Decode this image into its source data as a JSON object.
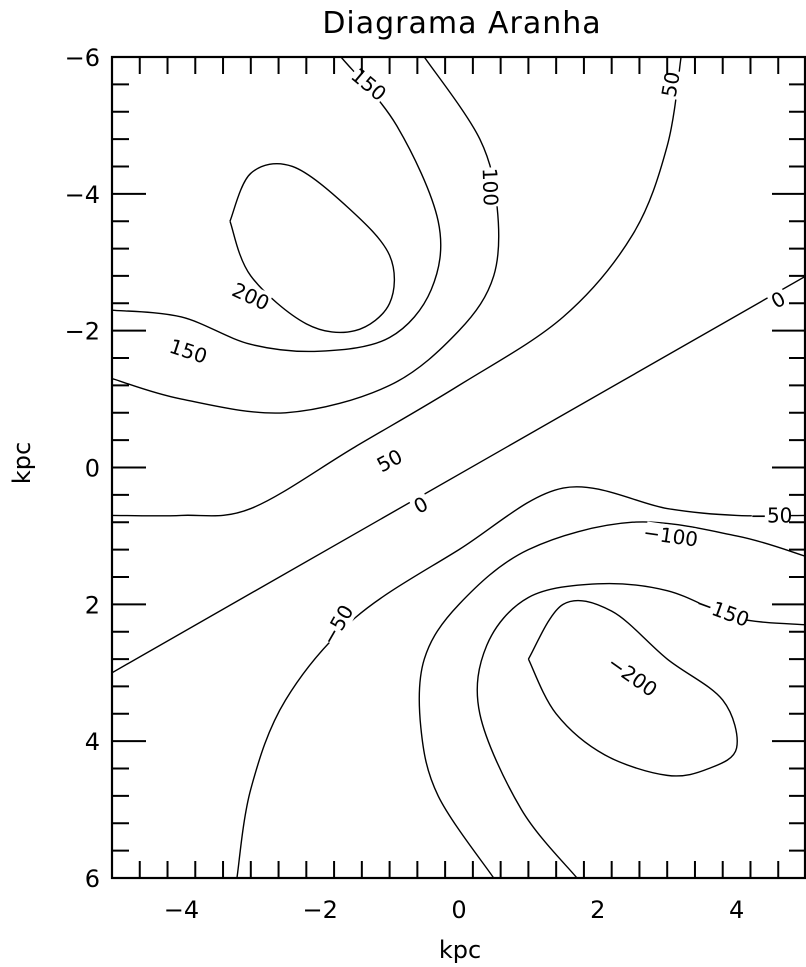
{
  "chart_data": {
    "type": "contour",
    "title": "Diagrama Aranha",
    "xlabel": "kpc",
    "ylabel": "kpc",
    "xlim": [
      -5,
      5
    ],
    "ylim": [
      -6,
      6
    ],
    "y_axis_inverted": true,
    "grid": false,
    "x_ticks": [
      -4,
      -2,
      0,
      2,
      4
    ],
    "y_ticks": [
      -6,
      -4,
      -2,
      0,
      2,
      4,
      6
    ],
    "x_tick_labels": [
      "−4",
      "−2",
      "0",
      "2",
      "4"
    ],
    "y_tick_labels": [
      "−6",
      "−4",
      "−2",
      "0",
      "2",
      "4",
      "6"
    ],
    "contours": [
      {
        "level": 200,
        "label": "200",
        "points": [
          [
            -3.3,
            -3.6
          ],
          [
            -3.0,
            -4.3
          ],
          [
            -2.4,
            -4.4
          ],
          [
            -1.6,
            -3.8
          ],
          [
            -1.0,
            -3.1
          ],
          [
            -1.0,
            -2.4
          ],
          [
            -1.5,
            -2.0
          ],
          [
            -2.2,
            -2.1
          ],
          [
            -3.0,
            -2.8
          ],
          [
            -3.3,
            -3.6
          ]
        ]
      },
      {
        "level": 150,
        "label": "150",
        "points": [
          [
            -1.7,
            -6.0
          ],
          [
            -0.9,
            -5.0
          ],
          [
            -0.3,
            -3.6
          ],
          [
            -0.4,
            -2.6
          ],
          [
            -1.0,
            -1.9
          ],
          [
            -2.0,
            -1.7
          ],
          [
            -3.0,
            -1.8
          ],
          [
            -4.0,
            -2.2
          ],
          [
            -5.0,
            -2.3
          ]
        ]
      },
      {
        "level": 100,
        "label": "100",
        "points": [
          [
            -0.5,
            -6.0
          ],
          [
            0.3,
            -4.8
          ],
          [
            0.55,
            -3.8
          ],
          [
            0.5,
            -2.8
          ],
          [
            0.0,
            -2.0
          ],
          [
            -1.0,
            -1.2
          ],
          [
            -2.5,
            -0.8
          ],
          [
            -4.0,
            -1.0
          ],
          [
            -5.0,
            -1.3
          ]
        ]
      },
      {
        "level": 50,
        "label": "50",
        "points": [
          [
            3.2,
            -6.0
          ],
          [
            3.0,
            -4.7
          ],
          [
            2.5,
            -3.4
          ],
          [
            1.5,
            -2.2
          ],
          [
            0.0,
            -1.2
          ],
          [
            -1.5,
            -0.3
          ],
          [
            -3.0,
            0.6
          ],
          [
            -4.0,
            0.7
          ],
          [
            -5.0,
            0.7
          ]
        ]
      },
      {
        "level": 0,
        "label": "0",
        "points": [
          [
            5.0,
            -2.8
          ],
          [
            -5.0,
            3.0
          ]
        ]
      },
      {
        "level": -50,
        "label": "−50",
        "points": [
          [
            5.0,
            0.7
          ],
          [
            4.0,
            0.7
          ],
          [
            3.0,
            0.6
          ],
          [
            1.5,
            0.3
          ],
          [
            0.0,
            1.2
          ],
          [
            -1.5,
            2.2
          ],
          [
            -2.5,
            3.4
          ],
          [
            -3.0,
            4.7
          ],
          [
            -3.2,
            6.0
          ]
        ]
      },
      {
        "level": -100,
        "label": "−100",
        "points": [
          [
            5.0,
            1.3
          ],
          [
            4.0,
            1.0
          ],
          [
            2.5,
            0.8
          ],
          [
            1.0,
            1.2
          ],
          [
            0.0,
            2.0
          ],
          [
            -0.5,
            2.8
          ],
          [
            -0.55,
            3.8
          ],
          [
            -0.3,
            4.8
          ],
          [
            0.5,
            6.0
          ]
        ]
      },
      {
        "level": -150,
        "label": "−150",
        "points": [
          [
            5.0,
            2.3
          ],
          [
            4.0,
            2.2
          ],
          [
            3.0,
            1.8
          ],
          [
            2.0,
            1.7
          ],
          [
            1.0,
            1.9
          ],
          [
            0.4,
            2.6
          ],
          [
            0.3,
            3.6
          ],
          [
            0.9,
            5.0
          ],
          [
            1.7,
            6.0
          ]
        ]
      },
      {
        "level": -200,
        "label": "−200",
        "points": [
          [
            1.0,
            2.8
          ],
          [
            1.5,
            2.0
          ],
          [
            2.2,
            2.1
          ],
          [
            3.0,
            2.8
          ],
          [
            3.8,
            3.4
          ],
          [
            4.0,
            4.1
          ],
          [
            3.6,
            4.4
          ],
          [
            3.0,
            4.5
          ],
          [
            2.1,
            4.2
          ],
          [
            1.4,
            3.6
          ],
          [
            1.0,
            2.8
          ]
        ]
      }
    ],
    "contour_labels": [
      {
        "text": "200",
        "x": -3.0,
        "y": -2.5,
        "angle": 25
      },
      {
        "text": "150",
        "x": -1.3,
        "y": -5.6,
        "angle": 40
      },
      {
        "text": "150",
        "x": -3.9,
        "y": -1.7,
        "angle": 18
      },
      {
        "text": "100",
        "x": 0.45,
        "y": -4.1,
        "angle": 88
      },
      {
        "text": "50",
        "x": 3.05,
        "y": -5.6,
        "angle": -80
      },
      {
        "text": "50",
        "x": -1.0,
        "y": -0.1,
        "angle": -28
      },
      {
        "text": "0",
        "x": -0.55,
        "y": 0.55,
        "angle": -28
      },
      {
        "text": "0",
        "x": 4.6,
        "y": -2.45,
        "angle": -28
      },
      {
        "text": "−50",
        "x": -1.75,
        "y": 2.3,
        "angle": -60
      },
      {
        "text": "−50",
        "x": 4.5,
        "y": 0.7,
        "angle": 0
      },
      {
        "text": "−100",
        "x": 3.05,
        "y": 1.0,
        "angle": 8
      },
      {
        "text": "−150",
        "x": 3.8,
        "y": 2.1,
        "angle": 20
      },
      {
        "text": "−200",
        "x": 2.5,
        "y": 3.05,
        "angle": 35
      }
    ]
  }
}
